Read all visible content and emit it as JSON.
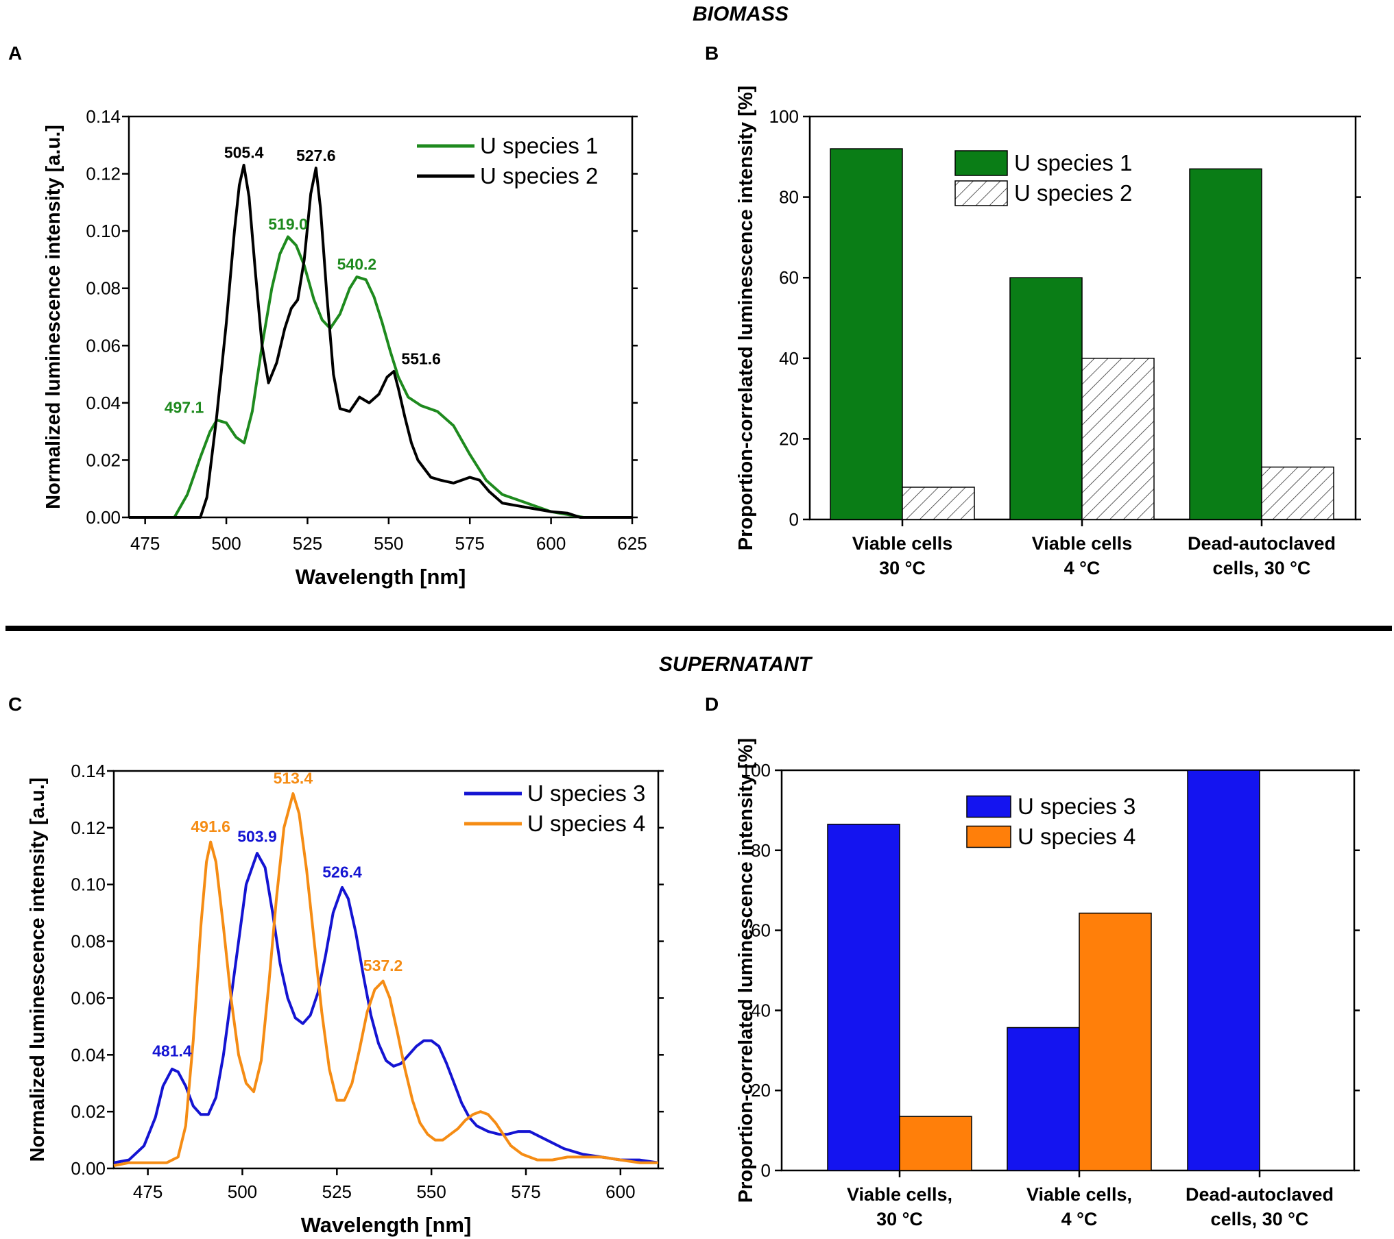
{
  "sections": {
    "top": "BIOMASS",
    "bottom": "SUPERNATANT"
  },
  "panels": {
    "A": "A",
    "B": "B",
    "C": "C",
    "D": "D"
  },
  "chart_data": [
    {
      "id": "A",
      "type": "line",
      "xlabel": "Wavelength [nm]",
      "ylabel": "Normalized luminescence intensity [a.u.]",
      "xlim": [
        470,
        625
      ],
      "ylim": [
        0,
        0.14
      ],
      "xticks": [
        475,
        500,
        525,
        550,
        575,
        600,
        625
      ],
      "yticks": [
        0.0,
        0.02,
        0.04,
        0.06,
        0.08,
        0.1,
        0.12,
        0.14
      ],
      "ytick_labels": [
        "0.00",
        "0.02",
        "0.04",
        "0.06",
        "0.08",
        "0.10",
        "0.12",
        "0.14"
      ],
      "legend_position": "top-right",
      "series": [
        {
          "name": "U species 1",
          "color": "#1e8a1e",
          "x": [
            470,
            484,
            488,
            492,
            495,
            497.1,
            500,
            503,
            505.5,
            508,
            511,
            514,
            516.5,
            519,
            521.5,
            524,
            527,
            529.5,
            532,
            535,
            538,
            540.2,
            543,
            545.5,
            548,
            550.5,
            553,
            556,
            560,
            565,
            570,
            575,
            580,
            585,
            590,
            595,
            600,
            605,
            610,
            625
          ],
          "y": [
            0,
            0,
            0.008,
            0.021,
            0.03,
            0.034,
            0.033,
            0.028,
            0.026,
            0.037,
            0.06,
            0.08,
            0.092,
            0.098,
            0.095,
            0.088,
            0.076,
            0.069,
            0.066,
            0.071,
            0.08,
            0.084,
            0.083,
            0.077,
            0.068,
            0.058,
            0.049,
            0.042,
            0.039,
            0.037,
            0.032,
            0.022,
            0.013,
            0.008,
            0.006,
            0.004,
            0.002,
            0.001,
            0,
            0
          ]
        },
        {
          "name": "U species 2",
          "color": "#000000",
          "x": [
            470,
            492,
            494,
            497,
            500,
            502.5,
            504,
            505.4,
            507,
            509,
            511,
            513,
            515.5,
            518,
            520,
            522,
            524,
            526,
            527.6,
            529,
            531,
            533,
            535,
            538,
            541,
            544,
            547,
            549.5,
            551.6,
            553,
            555,
            557,
            559,
            561,
            563,
            566,
            570,
            575,
            578,
            581,
            585,
            590,
            595,
            600,
            605,
            609,
            625
          ],
          "y": [
            0,
            0,
            0.007,
            0.035,
            0.068,
            0.1,
            0.116,
            0.123,
            0.112,
            0.085,
            0.06,
            0.047,
            0.054,
            0.066,
            0.073,
            0.076,
            0.09,
            0.113,
            0.122,
            0.108,
            0.077,
            0.05,
            0.038,
            0.037,
            0.042,
            0.04,
            0.043,
            0.049,
            0.051,
            0.045,
            0.035,
            0.026,
            0.02,
            0.017,
            0.014,
            0.013,
            0.012,
            0.014,
            0.013,
            0.009,
            0.005,
            0.004,
            0.003,
            0.002,
            0.0015,
            0,
            0
          ]
        }
      ],
      "annotations": [
        {
          "text": "505.4",
          "x": 505.4,
          "y": 0.1255,
          "color": "#000000"
        },
        {
          "text": "527.6",
          "x": 527.6,
          "y": 0.1245,
          "color": "#000000"
        },
        {
          "text": "519.0",
          "x": 519.0,
          "y": 0.1005,
          "color": "#1e8a1e"
        },
        {
          "text": "540.2",
          "x": 540.2,
          "y": 0.0865,
          "color": "#1e8a1e"
        },
        {
          "text": "551.6",
          "x": 560.0,
          "y": 0.0535,
          "color": "#000000"
        },
        {
          "text": "497.1",
          "x": 487.0,
          "y": 0.0365,
          "color": "#1e8a1e"
        }
      ]
    },
    {
      "id": "B",
      "type": "bar",
      "xlabel": "",
      "ylabel": "Proportion-correlated luminescence intensity [%]",
      "ylim": [
        0,
        100
      ],
      "yticks": [
        0,
        20,
        40,
        60,
        80,
        100
      ],
      "categories": [
        [
          "Viable cells",
          "30 °C"
        ],
        [
          "Viable cells",
          "4 °C"
        ],
        [
          "Dead-autoclaved",
          "cells, 30 °C"
        ]
      ],
      "legend_position": "top-center",
      "series": [
        {
          "name": "U species 1",
          "color": "#0a7d16",
          "pattern": "solid",
          "values": [
            92,
            60,
            87
          ]
        },
        {
          "name": "U species 2",
          "color": "#ffffff",
          "pattern": "hatch",
          "values": [
            8,
            40,
            13
          ]
        }
      ]
    },
    {
      "id": "C",
      "type": "line",
      "xlabel": "Wavelength [nm]",
      "ylabel": "Normalized luminescence intensity [a.u.]",
      "xlim": [
        466,
        610
      ],
      "ylim": [
        0,
        0.14
      ],
      "xticks": [
        475,
        500,
        525,
        550,
        575,
        600
      ],
      "yticks": [
        0.0,
        0.02,
        0.04,
        0.06,
        0.08,
        0.1,
        0.12,
        0.14
      ],
      "ytick_labels": [
        "0.00",
        "0.02",
        "0.04",
        "0.06",
        "0.08",
        "0.10",
        "0.12",
        "0.14"
      ],
      "legend_position": "top-right",
      "series": [
        {
          "name": "U species 3",
          "color": "#1414d2",
          "x": [
            466,
            470,
            474,
            477,
            479,
            481.4,
            483,
            485,
            487,
            489,
            491,
            493,
            495,
            497,
            499,
            501,
            503.9,
            506,
            508,
            510,
            512,
            514,
            516,
            518,
            520,
            522,
            524,
            526.4,
            528,
            530,
            532,
            534,
            536,
            538,
            540,
            542,
            544,
            546,
            548,
            550,
            552,
            554,
            556,
            558,
            560,
            562,
            565,
            568,
            570,
            573,
            576,
            579,
            582,
            585,
            590,
            595,
            600,
            605,
            610
          ],
          "y": [
            0.002,
            0.003,
            0.008,
            0.018,
            0.029,
            0.035,
            0.034,
            0.029,
            0.022,
            0.019,
            0.019,
            0.025,
            0.04,
            0.06,
            0.08,
            0.1,
            0.111,
            0.106,
            0.09,
            0.072,
            0.06,
            0.053,
            0.051,
            0.054,
            0.062,
            0.075,
            0.09,
            0.099,
            0.095,
            0.083,
            0.068,
            0.054,
            0.044,
            0.038,
            0.036,
            0.037,
            0.04,
            0.043,
            0.045,
            0.045,
            0.043,
            0.037,
            0.03,
            0.023,
            0.018,
            0.015,
            0.013,
            0.012,
            0.012,
            0.013,
            0.013,
            0.011,
            0.009,
            0.007,
            0.005,
            0.004,
            0.003,
            0.003,
            0.002
          ]
        },
        {
          "name": "U species 4",
          "color": "#f58c14",
          "x": [
            466,
            470,
            474,
            477,
            480,
            483,
            485,
            487,
            489,
            490.5,
            491.6,
            493,
            495,
            497,
            499,
            501,
            503,
            505,
            507,
            509,
            511,
            513.4,
            515,
            517,
            519,
            521,
            523,
            525,
            527,
            529,
            531,
            533,
            535,
            537.2,
            539,
            541,
            543,
            545,
            547,
            549,
            551,
            553,
            555,
            557,
            559,
            561,
            563,
            565,
            567,
            569,
            571,
            574,
            578,
            582,
            586,
            590,
            595,
            600,
            605,
            610
          ],
          "y": [
            0.001,
            0.002,
            0.002,
            0.002,
            0.002,
            0.004,
            0.015,
            0.045,
            0.085,
            0.108,
            0.115,
            0.108,
            0.085,
            0.06,
            0.04,
            0.03,
            0.027,
            0.038,
            0.065,
            0.095,
            0.12,
            0.132,
            0.125,
            0.105,
            0.08,
            0.055,
            0.035,
            0.024,
            0.024,
            0.03,
            0.042,
            0.055,
            0.063,
            0.066,
            0.06,
            0.048,
            0.035,
            0.024,
            0.016,
            0.012,
            0.01,
            0.01,
            0.012,
            0.014,
            0.017,
            0.019,
            0.02,
            0.019,
            0.016,
            0.012,
            0.008,
            0.005,
            0.003,
            0.003,
            0.004,
            0.004,
            0.004,
            0.003,
            0.002,
            0.002
          ]
        }
      ],
      "annotations": [
        {
          "text": "491.6",
          "x": 491.6,
          "y": 0.1185,
          "color": "#f58c14"
        },
        {
          "text": "513.4",
          "x": 513.4,
          "y": 0.1355,
          "color": "#f58c14"
        },
        {
          "text": "503.9",
          "x": 503.9,
          "y": 0.115,
          "color": "#1414d2"
        },
        {
          "text": "526.4",
          "x": 526.4,
          "y": 0.1025,
          "color": "#1414d2"
        },
        {
          "text": "537.2",
          "x": 537.2,
          "y": 0.0695,
          "color": "#f58c14"
        },
        {
          "text": "481.4",
          "x": 481.4,
          "y": 0.0395,
          "color": "#1414d2"
        }
      ]
    },
    {
      "id": "D",
      "type": "bar",
      "xlabel": "",
      "ylabel": "Proportion-correlated luminescence intensity [%]",
      "ylim": [
        0,
        100
      ],
      "yticks": [
        0,
        20,
        40,
        60,
        80,
        100
      ],
      "categories": [
        [
          "Viable cells,",
          "30 °C"
        ],
        [
          "Viable cells,",
          "4 °C"
        ],
        [
          "Dead-autoclaved",
          "cells, 30 °C"
        ]
      ],
      "legend_position": "top-center",
      "series": [
        {
          "name": "U species 3",
          "color": "#1414f0",
          "pattern": "solid",
          "values": [
            86.5,
            35.7,
            100
          ]
        },
        {
          "name": "U species 4",
          "color": "#ff7f0a",
          "pattern": "solid",
          "values": [
            13.5,
            64.3,
            0
          ]
        }
      ]
    }
  ]
}
